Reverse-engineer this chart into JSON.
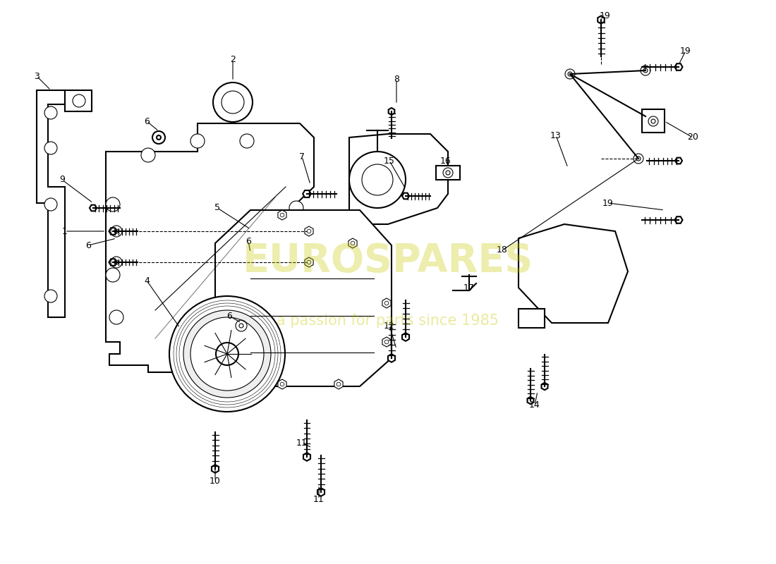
{
  "background_color": "#ffffff",
  "line_color": "#000000",
  "watermark_color": "#c8c800",
  "watermark_text1": "EUROSPARES",
  "watermark_text2": "a passion for parts since 1985",
  "fig_width": 11.0,
  "fig_height": 8.0
}
